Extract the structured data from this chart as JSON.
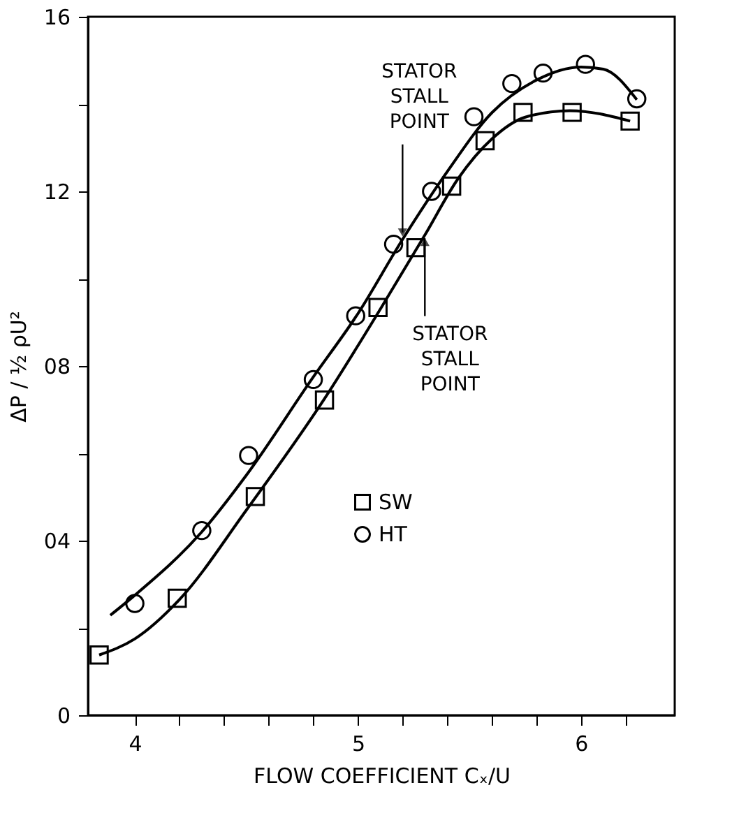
{
  "chart_data": {
    "type": "scatter",
    "xlabel": "FLOW COEFFICIENT   Cₓ/U",
    "ylabel": "ΔP / ½ ρU²",
    "xlim": [
      3.79,
      6.42
    ],
    "ylim": [
      0,
      16
    ],
    "xticks": [
      4,
      {
        "value": 4.2,
        "label": null
      },
      {
        "value": 4.4,
        "label": null
      },
      {
        "value": 4.6,
        "label": null
      },
      {
        "value": 4.8,
        "label": null
      },
      5,
      {
        "value": 5.2,
        "label": null
      },
      {
        "value": 5.4,
        "label": null
      },
      {
        "value": 5.6,
        "label": null
      },
      {
        "value": 5.8,
        "label": null
      },
      6,
      {
        "value": 6.2,
        "label": null
      }
    ],
    "yticks": [
      0,
      {
        "value": 2,
        "label": null
      },
      {
        "value": 4,
        "label": "04"
      },
      {
        "value": 6,
        "label": null
      },
      {
        "value": 8,
        "label": "08"
      },
      {
        "value": 10,
        "label": null
      },
      12,
      {
        "value": 14,
        "label": null
      },
      16
    ],
    "grid": false,
    "legend": "bottom",
    "series": [
      {
        "name": "SW",
        "marker": "square",
        "color": "#000000",
        "x": [
          3.84,
          4.19,
          4.54,
          4.85,
          5.09,
          5.26,
          5.42,
          5.57,
          5.74,
          5.96,
          6.22
        ],
        "values": [
          1.38,
          2.68,
          5.01,
          7.22,
          9.34,
          10.71,
          12.12,
          13.16,
          13.81,
          13.81,
          13.61
        ]
      },
      {
        "name": "HT",
        "marker": "circle",
        "color": "#000000",
        "x": [
          4.0,
          4.3,
          4.51,
          4.8,
          4.99,
          5.16,
          5.33,
          5.52,
          5.69,
          5.83,
          6.02,
          6.25
        ],
        "values": [
          2.56,
          4.23,
          5.95,
          7.69,
          9.15,
          10.79,
          12.0,
          13.71,
          14.47,
          14.71,
          14.91,
          14.12
        ]
      },
      {
        "type": "line",
        "marker": "none",
        "color": "#000000",
        "x": [
          3.84,
          4.0,
          4.2,
          4.5,
          4.85,
          5.1,
          5.3,
          5.45,
          5.6,
          5.75,
          5.95,
          6.22
        ],
        "values": [
          1.38,
          1.75,
          2.65,
          4.7,
          7.25,
          9.3,
          11.0,
          12.3,
          13.2,
          13.7,
          13.85,
          13.61
        ]
      },
      {
        "type": "line",
        "marker": "none",
        "color": "#000000",
        "x": [
          3.89,
          4.0,
          4.3,
          4.5,
          4.8,
          5.0,
          5.2,
          5.4,
          5.6,
          5.8,
          6.0,
          6.1,
          6.25
        ],
        "values": [
          2.29,
          2.75,
          4.2,
          5.5,
          7.75,
          9.2,
          10.9,
          12.45,
          13.8,
          14.55,
          14.85,
          14.8,
          14.1
        ]
      }
    ],
    "annotations": [
      {
        "text": "STATOR\nSTALL\nPOINT",
        "x": 5.2,
        "y": 10.9
      },
      {
        "text": "STATOR\nSTALL\nPOINT",
        "x": 5.3,
        "y": 11.0
      }
    ]
  }
}
